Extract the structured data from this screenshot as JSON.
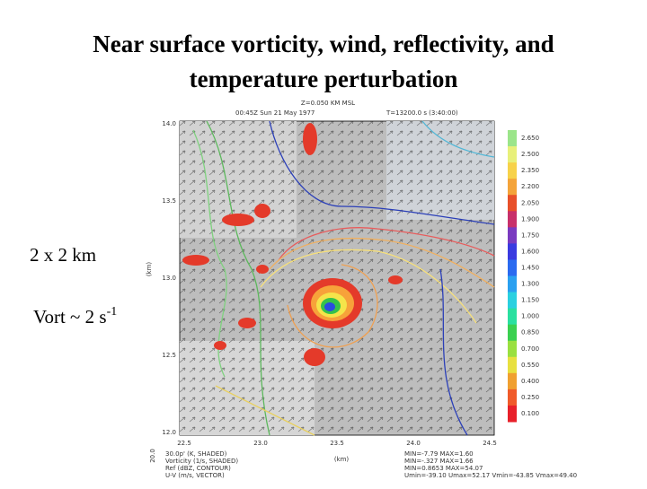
{
  "title": [
    "Near surface vorticity, wind, reflectivity, and",
    "temperature perturbation"
  ],
  "left_text": {
    "resolution": "2 x 2 km",
    "vort": "Vort ~ 2 s",
    "vort_exp": "-1"
  },
  "plot": {
    "header": [
      "Z=0.050 KM MSL",
      "00:45Z Sun 21 May 1977",
      "T=13200.0 s (3:40:00)"
    ],
    "x_ticks": [
      "22.5",
      "23.0",
      "23.5",
      "24.0",
      "24.5"
    ],
    "y_ticks": [
      "14.0",
      "13.5",
      "13.0",
      "12.5",
      "12.0"
    ],
    "x_label": "(km)",
    "y_label": "(km)",
    "corner_label": "20.0",
    "colorbar": [
      "2.650",
      "2.500",
      "2.350",
      "2.200",
      "2.050",
      "1.900",
      "1.750",
      "1.600",
      "1.450",
      "1.300",
      "1.150",
      "1.000",
      "0.850",
      "0.700",
      "0.550",
      "0.400",
      "0.250",
      "0.100"
    ],
    "legend": [
      "30.0p' (K, SHADED)",
      "Vorticity (1/s, SHADED)",
      "Ref (dBZ, CONTOUR)",
      "U-V (m/s, VECTOR)"
    ],
    "stats": [
      "MIN=-7.79 MAX=1.60",
      "MIN=-.327 MAX=1.66",
      "MIN=0.8653 MAX=54.07",
      "Umin=-39.10 Umax=52.17 Vmin=-43.85 Vmax=49.40"
    ]
  }
}
